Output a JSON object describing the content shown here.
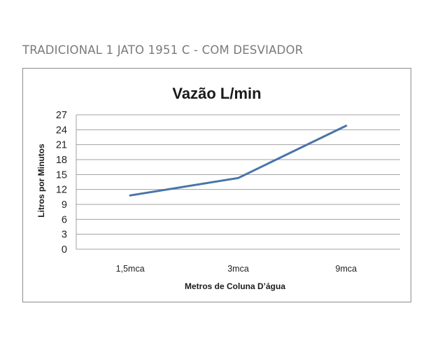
{
  "page": {
    "heading": "TRADICIONAL 1 JATO 1951 C - COM DESVIADOR"
  },
  "colors": {
    "series_line": "#4a74a8",
    "gridline": "#a0a0a0",
    "frame": "#8c8c8c",
    "heading_text": "#7a7a7a"
  },
  "chart_data": {
    "type": "line",
    "title": "Vazão L/min",
    "xlabel": "Metros de Coluna D’água",
    "ylabel": "Litros por Minutos",
    "categories": [
      "1,5mca",
      "3mca",
      "9mca"
    ],
    "series": [
      {
        "values": [
          10.8,
          14.3,
          24.8
        ]
      }
    ],
    "ylim": [
      0,
      27
    ],
    "yticks": [
      0,
      3,
      6,
      9,
      12,
      15,
      18,
      21,
      24,
      27
    ],
    "grid": true,
    "legend": "none"
  }
}
